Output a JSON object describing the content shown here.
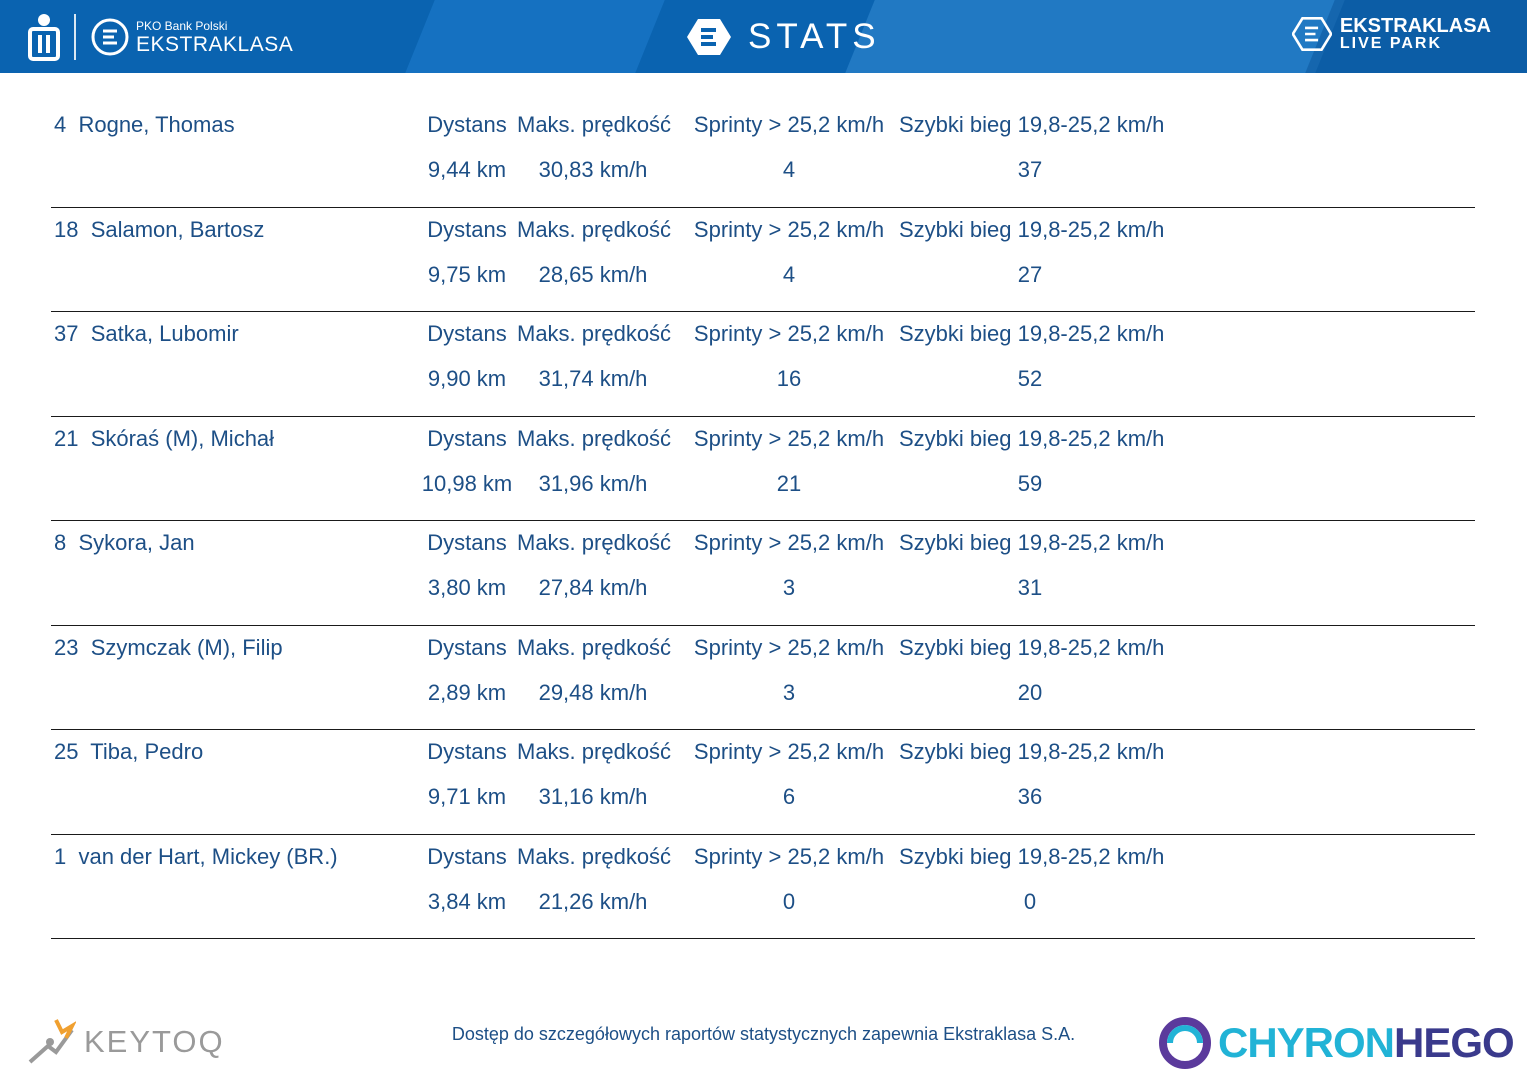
{
  "header": {
    "pko_text": "PKO Bank Polski",
    "league_text": "EKSTRAKLASA",
    "title": "STATS",
    "right_logo_line1": "EKSTRAKLASA",
    "right_logo_line2": "LIVE PARK"
  },
  "labels": {
    "distance": "Dystans",
    "max_speed": "Maks. prędkość",
    "sprints": "Sprinty > 25,2 km/h",
    "fast_runs": "Szybki bieg 19,8-25,2 km/h"
  },
  "players": [
    {
      "name": "4  Rogne, Thomas",
      "distance": "9,44 km",
      "max_speed": "30,83 km/h",
      "sprints": "4",
      "fast_runs": "37"
    },
    {
      "name": "18  Salamon, Bartosz",
      "distance": "9,75 km",
      "max_speed": "28,65 km/h",
      "sprints": "4",
      "fast_runs": "27"
    },
    {
      "name": "37  Satka, Lubomir",
      "distance": "9,90 km",
      "max_speed": "31,74 km/h",
      "sprints": "16",
      "fast_runs": "52"
    },
    {
      "name": "21  Skóraś (M), Michał",
      "distance": "10,98 km",
      "max_speed": "31,96 km/h",
      "sprints": "21",
      "fast_runs": "59"
    },
    {
      "name": "8  Sykora, Jan",
      "distance": "3,80 km",
      "max_speed": "27,84 km/h",
      "sprints": "3",
      "fast_runs": "31"
    },
    {
      "name": "23  Szymczak (M), Filip",
      "distance": "2,89 km",
      "max_speed": "29,48 km/h",
      "sprints": "3",
      "fast_runs": "20"
    },
    {
      "name": "25  Tiba, Pedro",
      "distance": "9,71 km",
      "max_speed": "31,16 km/h",
      "sprints": "6",
      "fast_runs": "36"
    },
    {
      "name": "1  van der Hart, Mickey (BR.)",
      "distance": "3,84 km",
      "max_speed": "21,26 km/h",
      "sprints": "0",
      "fast_runs": "0"
    }
  ],
  "footer": {
    "note": "Dostęp do szczegółowych raportów statystycznych zapewnia Ekstraklasa S.A.",
    "keytoq": "KEYTOQ",
    "chyron_part1": "CHYRON",
    "chyron_part2": "HEGO"
  },
  "colors": {
    "header_blue": "#0a63b0",
    "text_blue": "#1d4f86",
    "chyron_cyan": "#21b3d6",
    "chyron_navy": "#3a3a8c"
  }
}
